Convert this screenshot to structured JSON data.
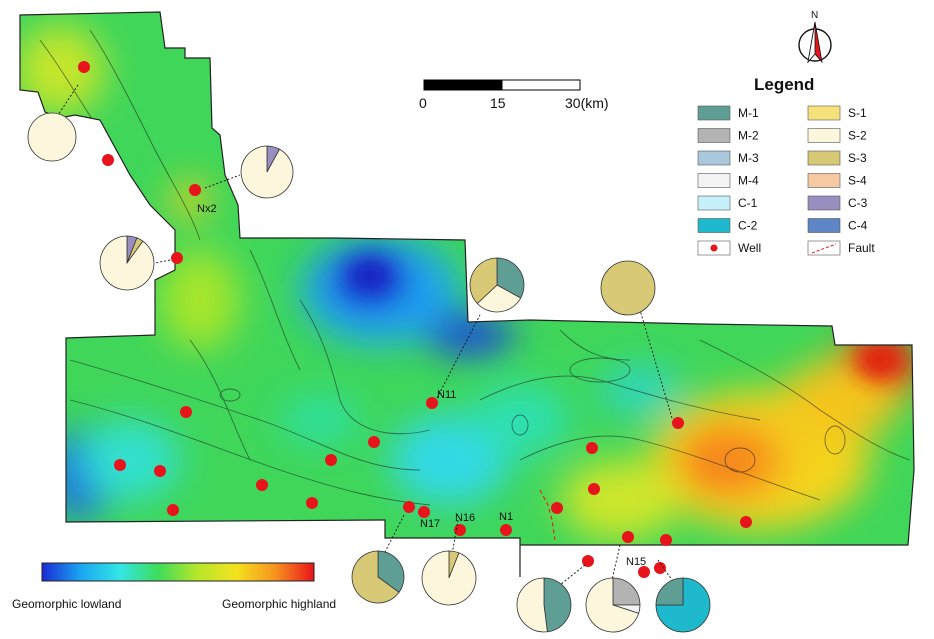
{
  "scale_bar": {
    "ticks": [
      "0",
      "15",
      "30(km)"
    ]
  },
  "north_label": "N",
  "legend": {
    "title": "Legend",
    "items": [
      {
        "label": "M-1",
        "color": "#5f9e95",
        "kind": "swatch"
      },
      {
        "label": "S-1",
        "color": "#f6e27a",
        "kind": "swatch"
      },
      {
        "label": "M-2",
        "color": "#b3b3b3",
        "kind": "swatch"
      },
      {
        "label": "S-2",
        "color": "#fbf6dc",
        "kind": "swatch"
      },
      {
        "label": "M-3",
        "color": "#a9c8dc",
        "kind": "swatch"
      },
      {
        "label": "S-3",
        "color": "#d8c977",
        "kind": "swatch"
      },
      {
        "label": "M-4",
        "color": "#f4f4f4",
        "kind": "swatch"
      },
      {
        "label": "S-4",
        "color": "#f7c9a3",
        "kind": "swatch"
      },
      {
        "label": "C-1",
        "color": "#c6f1fb",
        "kind": "swatch"
      },
      {
        "label": "C-3",
        "color": "#9a8ec0",
        "kind": "swatch"
      },
      {
        "label": "C-2",
        "color": "#1eb9cc",
        "kind": "swatch"
      },
      {
        "label": "C-4",
        "color": "#5e86c6",
        "kind": "swatch"
      },
      {
        "label": "Well",
        "color": "#e8141c",
        "kind": "well"
      },
      {
        "label": "Fault",
        "color": "#e8141c",
        "kind": "fault"
      }
    ]
  },
  "color_ramp": {
    "low_label": "Geomorphic lowland",
    "high_label": "Geomorphic highland",
    "colors": [
      "#1a2bd6",
      "#1aa6f0",
      "#33e6e6",
      "#3fdc5a",
      "#b6e62a",
      "#f4e21f",
      "#f7931e",
      "#e8141c"
    ]
  },
  "well_labels": [
    "Nx2",
    "N11",
    "N17",
    "N16",
    "N1",
    "N15"
  ],
  "pies": [
    {
      "slices": [
        {
          "value": 100,
          "color": "#fbf6dc"
        }
      ]
    },
    {
      "slices": [
        {
          "value": 8,
          "color": "#9a8ec0"
        },
        {
          "value": 92,
          "color": "#fbf6dc"
        }
      ]
    },
    {
      "slices": [
        {
          "value": 6,
          "color": "#9a8ec0"
        },
        {
          "value": 4,
          "color": "#d8c977"
        },
        {
          "value": 90,
          "color": "#fbf6dc"
        }
      ]
    },
    {
      "slices": [
        {
          "value": 33,
          "color": "#5f9e95"
        },
        {
          "value": 30,
          "color": "#fbf6dc"
        },
        {
          "value": 37,
          "color": "#d8c977"
        }
      ]
    },
    {
      "slices": [
        {
          "value": 100,
          "color": "#d8c977"
        }
      ]
    },
    {
      "slices": [
        {
          "value": 35,
          "color": "#5f9e95"
        },
        {
          "value": 65,
          "color": "#d8c977"
        }
      ]
    },
    {
      "slices": [
        {
          "value": 6,
          "color": "#d8c977"
        },
        {
          "value": 94,
          "color": "#fbf6dc"
        }
      ]
    },
    {
      "slices": [
        {
          "value": 48,
          "color": "#5f9e95"
        },
        {
          "value": 52,
          "color": "#fbf6dc"
        }
      ]
    },
    {
      "slices": [
        {
          "value": 25,
          "color": "#b3b3b3"
        },
        {
          "value": 5,
          "color": "#f4f4f4"
        },
        {
          "value": 70,
          "color": "#fbf6dc"
        }
      ]
    },
    {
      "slices": [
        {
          "value": 75,
          "color": "#1eb9cc"
        },
        {
          "value": 25,
          "color": "#5f9e95"
        }
      ]
    }
  ]
}
